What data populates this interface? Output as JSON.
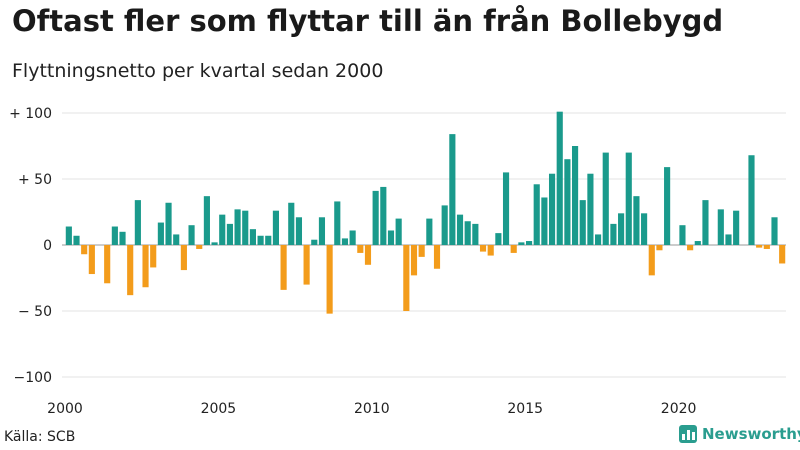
{
  "title": "Oftast fler som flyttar till än från Bollebygd",
  "subtitle": "Flyttningsnetto per kvartal sedan 2000",
  "source": "Källa: SCB",
  "brand": "Newsworthy",
  "colors": {
    "positive": "#1a9a8c",
    "negative": "#f39c1b",
    "brand": "#2a9d8f"
  },
  "chart_data": {
    "type": "bar",
    "title": "",
    "xlabel": "",
    "ylabel": "",
    "ylim": [
      -100,
      100
    ],
    "grid": true,
    "legend": "none",
    "y_ticks": [
      {
        "value": 100,
        "label": "+ 100"
      },
      {
        "value": 50,
        "label": "+  50"
      },
      {
        "value": 0,
        "label": "0"
      },
      {
        "value": -50,
        "label": "− 50"
      },
      {
        "value": -100,
        "label": "−100"
      }
    ],
    "x_ticks": [
      {
        "year": 2000,
        "label": "2000"
      },
      {
        "year": 2005,
        "label": "2005"
      },
      {
        "year": 2010,
        "label": "2010"
      },
      {
        "year": 2015,
        "label": "2015"
      },
      {
        "year": 2020,
        "label": "2020"
      }
    ],
    "start_year": 2000,
    "start_quarter": 1,
    "values": [
      14,
      7,
      -7,
      -22,
      0,
      -29,
      14,
      10,
      -38,
      34,
      -32,
      -17,
      17,
      32,
      8,
      -19,
      15,
      -3,
      37,
      2,
      23,
      16,
      27,
      26,
      12,
      7,
      7,
      26,
      -34,
      32,
      21,
      -30,
      4,
      21,
      -52,
      33,
      5,
      11,
      -6,
      -15,
      41,
      44,
      11,
      20,
      -50,
      -23,
      -9,
      20,
      -18,
      30,
      84,
      23,
      18,
      16,
      -5,
      -8,
      9,
      55,
      -6,
      2,
      3,
      46,
      36,
      54,
      101,
      65,
      75,
      34,
      54,
      8,
      70,
      16,
      24,
      70,
      37,
      24,
      -23,
      -4,
      59,
      0,
      15,
      -4,
      3,
      34,
      0,
      27,
      8,
      26,
      0,
      68,
      -2,
      -3,
      21,
      -14
    ]
  }
}
